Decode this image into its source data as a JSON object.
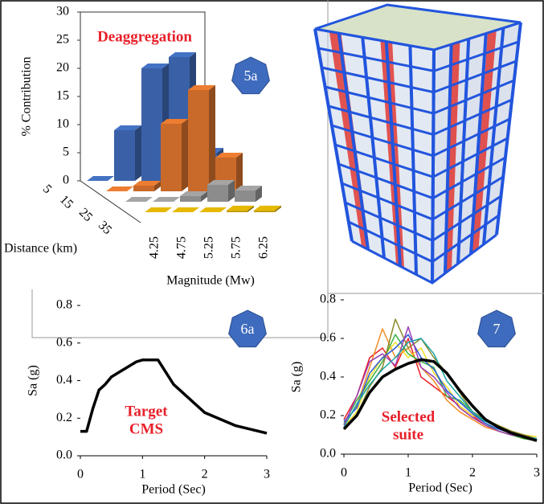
{
  "chart_data": [
    {
      "type": "bar3d",
      "annotation": "Deaggregation",
      "badge": "5a",
      "ylabel": "% Contribution",
      "xlabel": "Magnitude (Mw)",
      "zlabel": "Distance (km)",
      "categories": [
        "4.25",
        "4.75",
        "5.25",
        "5.75",
        "6.25"
      ],
      "series": [
        {
          "name": "5",
          "color": "#4472c4",
          "values": [
            0,
            9,
            20,
            22,
            5
          ]
        },
        {
          "name": "15",
          "color": "#ed7d31",
          "values": [
            0,
            1,
            12,
            18,
            6
          ]
        },
        {
          "name": "25",
          "color": "#a5a5a5",
          "values": [
            0,
            0,
            1,
            3,
            2
          ]
        },
        {
          "name": "35",
          "color": "#e6b800",
          "values": [
            0,
            0,
            0,
            0.3,
            0.3
          ]
        }
      ],
      "ylim": [
        0,
        30
      ],
      "yticks": [
        0,
        5,
        10,
        15,
        20,
        25,
        30
      ]
    },
    {
      "type": "line",
      "annotation": [
        "Target",
        "CMS"
      ],
      "badge": "6a",
      "xlabel": "Period (Sec)",
      "ylabel": "Sa (g)",
      "x": [
        0,
        0.1,
        0.2,
        0.3,
        0.4,
        0.5,
        0.6,
        0.75,
        0.9,
        1.0,
        1.1,
        1.25,
        1.5,
        2.0,
        2.5,
        3.0
      ],
      "series": [
        {
          "color": "#000000",
          "width": 3.5,
          "values": [
            0.13,
            0.13,
            0.25,
            0.35,
            0.38,
            0.42,
            0.44,
            0.47,
            0.5,
            0.51,
            0.51,
            0.51,
            0.38,
            0.23,
            0.16,
            0.12
          ]
        }
      ],
      "xlim": [
        0,
        3
      ],
      "xticks": [
        0,
        1,
        2,
        3
      ],
      "ylim": [
        0,
        0.8
      ],
      "yticks": [
        {
          "value": 0,
          "label": "0.0"
        },
        0.2,
        0.4,
        0.6,
        0.8
      ]
    },
    {
      "type": "line",
      "annotation": [
        "Selected",
        "suite"
      ],
      "badge": "7",
      "xlabel": "Period (Sec)",
      "ylabel": "Sa (g)",
      "x": [
        0,
        0.2,
        0.4,
        0.6,
        0.8,
        1.0,
        1.2,
        1.4,
        1.6,
        1.8,
        2.0,
        2.2,
        2.4,
        2.6,
        2.8,
        3.0
      ],
      "series": [
        {
          "color": "#e8202a",
          "width": 1.5,
          "values": [
            0.18,
            0.3,
            0.5,
            0.55,
            0.45,
            0.6,
            0.4,
            0.35,
            0.3,
            0.25,
            0.2,
            0.15,
            0.12,
            0.1,
            0.09,
            0.08
          ]
        },
        {
          "color": "#f28c28",
          "width": 1.5,
          "values": [
            0.15,
            0.25,
            0.45,
            0.65,
            0.5,
            0.55,
            0.45,
            0.38,
            0.28,
            0.22,
            0.18,
            0.14,
            0.12,
            0.1,
            0.08,
            0.07
          ]
        },
        {
          "color": "#f2e02a",
          "width": 1.5,
          "values": [
            0.14,
            0.22,
            0.4,
            0.5,
            0.58,
            0.5,
            0.55,
            0.42,
            0.35,
            0.25,
            0.2,
            0.18,
            0.15,
            0.12,
            0.1,
            0.09
          ]
        },
        {
          "color": "#3cb043",
          "width": 1.5,
          "values": [
            0.16,
            0.28,
            0.38,
            0.48,
            0.62,
            0.52,
            0.48,
            0.45,
            0.3,
            0.28,
            0.22,
            0.16,
            0.12,
            0.1,
            0.08,
            0.07
          ]
        },
        {
          "color": "#8a8a2a",
          "width": 1.5,
          "values": [
            0.13,
            0.2,
            0.35,
            0.45,
            0.7,
            0.55,
            0.6,
            0.5,
            0.42,
            0.32,
            0.22,
            0.18,
            0.15,
            0.12,
            0.1,
            0.08
          ]
        },
        {
          "color": "#2a5ad8",
          "width": 1.5,
          "values": [
            0.17,
            0.24,
            0.42,
            0.5,
            0.55,
            0.62,
            0.5,
            0.44,
            0.33,
            0.27,
            0.21,
            0.16,
            0.13,
            0.11,
            0.09,
            0.08
          ]
        },
        {
          "color": "#9b3fb5",
          "width": 1.5,
          "values": [
            0.15,
            0.3,
            0.48,
            0.52,
            0.46,
            0.66,
            0.45,
            0.4,
            0.32,
            0.24,
            0.19,
            0.15,
            0.12,
            0.1,
            0.09,
            0.07
          ]
        },
        {
          "color": "#1aa6a6",
          "width": 1.5,
          "values": [
            0.14,
            0.26,
            0.36,
            0.44,
            0.5,
            0.58,
            0.6,
            0.52,
            0.38,
            0.3,
            0.22,
            0.17,
            0.14,
            0.11,
            0.09,
            0.08
          ]
        },
        {
          "color": "#000000",
          "width": 3.5,
          "values": [
            0.13,
            0.2,
            0.32,
            0.4,
            0.44,
            0.47,
            0.49,
            0.48,
            0.42,
            0.33,
            0.25,
            0.18,
            0.14,
            0.11,
            0.09,
            0.07
          ]
        }
      ],
      "xlim": [
        0,
        3
      ],
      "xticks": [
        0,
        1,
        2,
        3
      ],
      "ylim": [
        0,
        0.8
      ],
      "yticks": [
        {
          "value": 0,
          "label": "0.0"
        },
        0.2,
        0.4,
        0.6,
        0.8
      ]
    }
  ]
}
